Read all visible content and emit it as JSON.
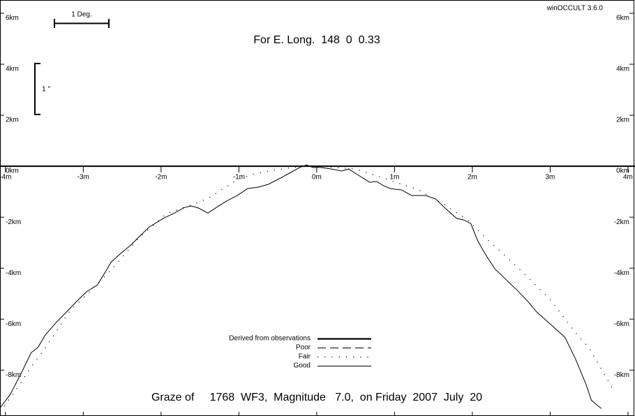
{
  "chart_data": {
    "type": "line",
    "version_label": "winOCCULT 3.6.0",
    "subtitle": "For E. Long.  148  0  0.33",
    "title": "Graze of     1768  WF3,  Magnitude   7.0,  on Friday  2007  July  20",
    "scale_deg_label": "1 Deg.",
    "scale_arcsec_label": "1 ''",
    "xlim": [
      -4.07,
      4.09
    ],
    "ylim": [
      -9.8,
      6.52
    ],
    "xticks": [
      {
        "value": -4,
        "label": "-4m"
      },
      {
        "value": -3,
        "label": "-3m"
      },
      {
        "value": -2,
        "label": "-2m"
      },
      {
        "value": -1,
        "label": "-1m"
      },
      {
        "value": 0,
        "label": "0m"
      },
      {
        "value": 1,
        "label": "1m"
      },
      {
        "value": 2,
        "label": "2m"
      },
      {
        "value": 3,
        "label": "3m"
      },
      {
        "value": 4,
        "label": "4m"
      }
    ],
    "yticks": [
      {
        "value": 6,
        "label": "6km"
      },
      {
        "value": 4,
        "label": "4km"
      },
      {
        "value": 2,
        "label": "2km"
      },
      {
        "value": 0,
        "label": "0km"
      },
      {
        "value": -2,
        "label": "-2km"
      },
      {
        "value": -4,
        "label": "-4km"
      },
      {
        "value": -6,
        "label": "-6km"
      },
      {
        "value": -8,
        "label": "-8km"
      }
    ],
    "series": [
      {
        "name": "Derived from observations",
        "color": "#000000",
        "line_style": "thick",
        "x": [],
        "values": []
      },
      {
        "name": "Poor",
        "color": "#000000",
        "line_style": "dashed",
        "x": [],
        "values": []
      },
      {
        "name": "Fair",
        "color": "#000000",
        "line_style": "dotted",
        "x": [
          -4.07,
          -3.8,
          -3.67,
          -3.53,
          -3.17,
          -2.82,
          -2.55,
          -2.28,
          -1.92,
          -1.65,
          -1.52,
          -1.38,
          -1.2,
          -1.02,
          -0.84,
          -0.57,
          -0.3,
          -0.13,
          0.05,
          0.23,
          0.5,
          0.77,
          1.04,
          1.31,
          1.67,
          1.94,
          2.21,
          2.48,
          2.74,
          3.01,
          3.28,
          3.51,
          3.64,
          3.82
        ],
        "values": [
          -9.64,
          -8.49,
          -7.86,
          -7.32,
          -5.67,
          -4.63,
          -3.75,
          -2.79,
          -1.84,
          -1.56,
          -1.42,
          -1.23,
          -0.88,
          -0.52,
          -0.33,
          -0.16,
          -0.05,
          0,
          0,
          -0.05,
          -0.11,
          -0.38,
          -0.66,
          -0.93,
          -1.56,
          -2.11,
          -2.93,
          -3.67,
          -4.44,
          -5.26,
          -6.36,
          -7.18,
          -7.86,
          -8.82
        ]
      },
      {
        "name": "Good",
        "color": "#000000",
        "line_style": "solid",
        "x": [
          -4.07,
          -3.94,
          -3.8,
          -3.67,
          -3.58,
          -3.49,
          -3.35,
          -3.22,
          -3.09,
          -2.96,
          -2.82,
          -2.73,
          -2.64,
          -2.51,
          -2.38,
          -2.29,
          -2.15,
          -1.96,
          -1.83,
          -1.7,
          -1.61,
          -1.52,
          -1.4,
          -1.29,
          -1.16,
          -1.02,
          -0.89,
          -0.75,
          -0.62,
          -0.48,
          -0.35,
          -0.22,
          -0.13,
          -0.05,
          0.05,
          0.19,
          0.32,
          0.41,
          0.55,
          0.68,
          0.77,
          0.86,
          0.95,
          1.09,
          1.22,
          1.4,
          1.53,
          1.67,
          1.8,
          1.89,
          1.98,
          2.07,
          2.16,
          2.29,
          2.43,
          2.57,
          2.7,
          2.83,
          3.01,
          3.19,
          3.33,
          3.46,
          3.53,
          3.6,
          3.66
        ],
        "values": [
          -9.48,
          -8.96,
          -8.14,
          -7.32,
          -7.1,
          -6.63,
          -6.14,
          -5.73,
          -5.32,
          -4.93,
          -4.66,
          -4.22,
          -3.75,
          -3.4,
          -3.07,
          -2.79,
          -2.38,
          -2.03,
          -1.84,
          -1.62,
          -1.56,
          -1.64,
          -1.84,
          -1.62,
          -1.37,
          -1.15,
          -0.88,
          -0.82,
          -0.71,
          -0.49,
          -0.27,
          -0.05,
          0.05,
          -0.05,
          -0.05,
          -0.11,
          -0.19,
          -0.11,
          -0.38,
          -0.63,
          -0.6,
          -0.77,
          -0.88,
          -0.93,
          -1.15,
          -1.15,
          -1.29,
          -1.7,
          -2.05,
          -2.11,
          -2.25,
          -2.93,
          -3.42,
          -4.03,
          -4.44,
          -4.85,
          -5.26,
          -5.73,
          -6.22,
          -6.71,
          -7.59,
          -8.55,
          -9.18,
          -9.37,
          -9.51
        ]
      }
    ]
  }
}
